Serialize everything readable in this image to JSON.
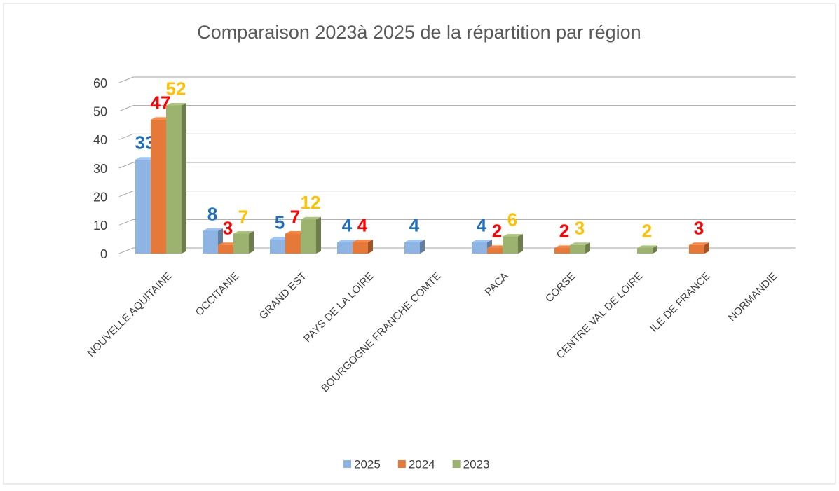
{
  "chart_data": {
    "type": "bar",
    "title": "Comparaison 2023à 2025 de la répartition par région",
    "categories": [
      "NOUVELLE AQUITAINE",
      "OCCITANIE",
      "GRAND EST",
      "PAYS DE LA LOIRE",
      "BOURGOGNE FRANCHE COMTE",
      "PACA",
      "CORSE",
      "CENTRE VAL DE LOIRE",
      "ILE DE FRANCE",
      "NORMANDIE"
    ],
    "series": [
      {
        "name": "2025",
        "color": "#8db4e2",
        "label_color": "#1f6fbf",
        "values": [
          33,
          8,
          5,
          4,
          4,
          4,
          null,
          null,
          null,
          null
        ]
      },
      {
        "name": "2024",
        "color": "#e5793a",
        "label_color": "#ff0000",
        "values": [
          47,
          3,
          7,
          4,
          null,
          2,
          2,
          null,
          3,
          null
        ]
      },
      {
        "name": "2023",
        "color": "#9bb36f",
        "label_color": "#ffc000",
        "values": [
          52,
          7,
          12,
          null,
          null,
          6,
          3,
          2,
          null,
          null
        ]
      }
    ],
    "ylim": [
      0,
      60
    ],
    "yticks": [
      0,
      10,
      20,
      30,
      40,
      50,
      60
    ],
    "grid": true,
    "legend": "bottom"
  }
}
